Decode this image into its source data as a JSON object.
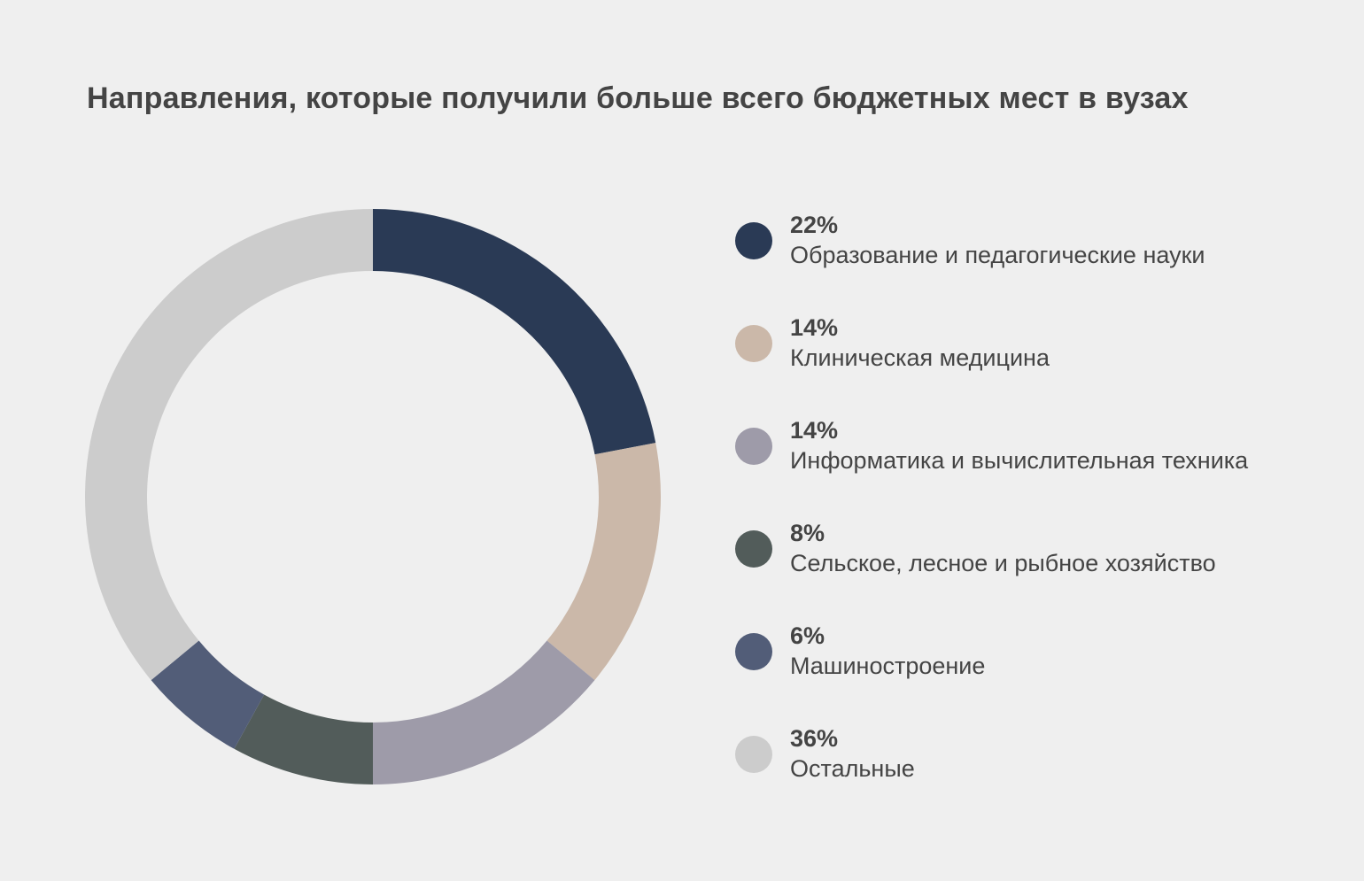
{
  "chart_data": {
    "type": "pie",
    "title": "Направления, которые получили больше всего бюджетных мест в вузах",
    "series": [
      {
        "label": "Образование и педагогические науки",
        "value": 22,
        "display": "22%",
        "color": "#2a3a55"
      },
      {
        "label": "Клиническая медицина",
        "value": 14,
        "display": "14%",
        "color": "#cbb8a9"
      },
      {
        "label": "Информатика и вычислительная техника",
        "value": 14,
        "display": "14%",
        "color": "#9e9ba9"
      },
      {
        "label": "Сельское, лесное и рыбное хозяйство",
        "value": 8,
        "display": "8%",
        "color": "#525c5a"
      },
      {
        "label": "Машиностроение",
        "value": 6,
        "display": "6%",
        "color": "#525d78"
      },
      {
        "label": "Остальные",
        "value": 36,
        "display": "36%",
        "color": "#cccccc"
      }
    ],
    "legend_position": "right",
    "style": "donut"
  }
}
